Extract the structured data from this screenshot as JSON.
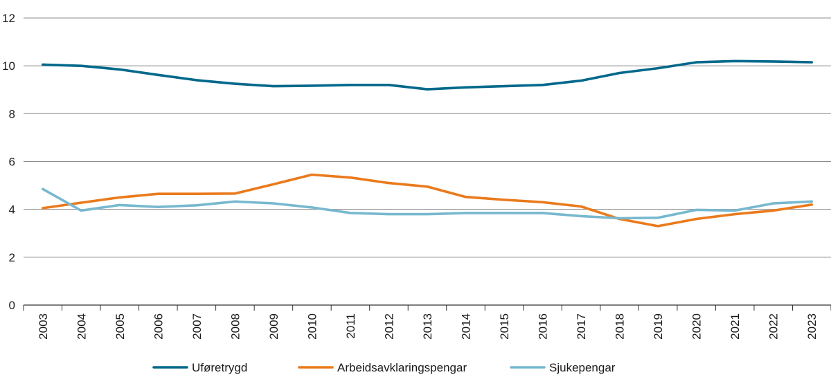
{
  "chart_data": {
    "type": "line",
    "title": "",
    "xlabel": "",
    "ylabel": "",
    "ylim": [
      0,
      12
    ],
    "yticks": [
      0,
      2,
      4,
      6,
      8,
      10,
      12
    ],
    "grid": true,
    "legend_position": "bottom",
    "categories": [
      "2003",
      "2004",
      "2005",
      "2006",
      "2007",
      "2008",
      "2009",
      "2010",
      "2011",
      "2012",
      "2013",
      "2014",
      "2015",
      "2016",
      "2017",
      "2018",
      "2019",
      "2020",
      "2021",
      "2022",
      "2023"
    ],
    "series": [
      {
        "name": "Uføretrygd",
        "color": "#00688B",
        "values": [
          10.05,
          10.0,
          9.85,
          9.62,
          9.4,
          9.25,
          9.15,
          9.17,
          9.2,
          9.2,
          9.02,
          9.1,
          9.15,
          9.2,
          9.38,
          9.7,
          9.9,
          10.15,
          10.2,
          10.18,
          10.15
        ]
      },
      {
        "name": "Arbeidsavklaringspengar",
        "color": "#EA7A1C",
        "values": [
          4.05,
          4.28,
          4.5,
          4.65,
          4.65,
          4.66,
          5.05,
          5.45,
          5.33,
          5.1,
          4.95,
          4.52,
          4.4,
          4.3,
          4.12,
          3.6,
          3.3,
          3.6,
          3.8,
          3.95,
          4.2
        ]
      },
      {
        "name": "Sjukepengar",
        "color": "#77B8CF",
        "values": [
          4.85,
          3.95,
          4.18,
          4.1,
          4.17,
          4.33,
          4.25,
          4.08,
          3.85,
          3.8,
          3.8,
          3.85,
          3.85,
          3.85,
          3.72,
          3.63,
          3.65,
          3.98,
          3.95,
          4.25,
          4.33
        ]
      }
    ]
  }
}
